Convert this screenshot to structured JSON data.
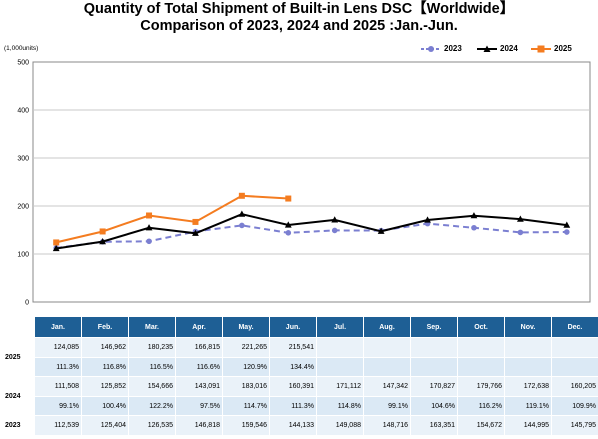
{
  "title_line1": "Quantity of Total Shipment of Built-in Lens DSC【Worldwide】",
  "title_line2": "Comparison of 2023, 2024 and 2025 :Jan.-Jun.",
  "units": "(1,000units)",
  "chart_data": {
    "type": "line",
    "categories": [
      "Jan.",
      "Feb.",
      "Mar.",
      "Apr.",
      "May.",
      "Jun.",
      "Jul.",
      "Aug.",
      "Sep.",
      "Oct.",
      "Nov.",
      "Dec."
    ],
    "ylim": [
      0,
      500
    ],
    "yticks": [
      0,
      100,
      200,
      300,
      400,
      500
    ],
    "ytick_labels": [
      "0",
      "100",
      "200",
      "300",
      "400",
      "500"
    ],
    "grid": true,
    "legend_position": "top-right",
    "series": [
      {
        "name": "2023",
        "color": "#7b7fd1",
        "dashed": true,
        "marker": "circle",
        "values": [
          112.539,
          125.404,
          126.535,
          146.818,
          159.546,
          144.133,
          149.088,
          148.716,
          163.351,
          154.672,
          144.995,
          145.795
        ]
      },
      {
        "name": "2024",
        "color": "#000000",
        "dashed": false,
        "marker": "triangle",
        "values": [
          111.508,
          125.852,
          154.666,
          143.091,
          183.016,
          160.391,
          171.112,
          147.342,
          170.827,
          179.766,
          172.638,
          160.205
        ]
      },
      {
        "name": "2025",
        "color": "#f47c20",
        "dashed": false,
        "marker": "square",
        "values": [
          124.085,
          146.962,
          180.235,
          166.815,
          221.265,
          215.541,
          null,
          null,
          null,
          null,
          null,
          null
        ]
      }
    ]
  },
  "table": {
    "months": [
      "Jan.",
      "Feb.",
      "Mar.",
      "Apr.",
      "May.",
      "Jun.",
      "Jul.",
      "Aug.",
      "Sep.",
      "Oct.",
      "Nov.",
      "Dec."
    ],
    "rows": [
      {
        "year": "2025",
        "values": [
          "124,085",
          "146,962",
          "180,235",
          "166,815",
          "221,265",
          "215,541",
          "",
          "",
          "",
          "",
          "",
          ""
        ],
        "pct": [
          "111.3%",
          "116.8%",
          "116.5%",
          "116.6%",
          "120.9%",
          "134.4%",
          "",
          "",
          "",
          "",
          "",
          ""
        ]
      },
      {
        "year": "2024",
        "values": [
          "111,508",
          "125,852",
          "154,666",
          "143,091",
          "183,016",
          "160,391",
          "171,112",
          "147,342",
          "170,827",
          "179,766",
          "172,638",
          "160,205"
        ],
        "pct": [
          "99.1%",
          "100.4%",
          "122.2%",
          "97.5%",
          "114.7%",
          "111.3%",
          "114.8%",
          "99.1%",
          "104.6%",
          "116.2%",
          "119.1%",
          "109.9%"
        ]
      },
      {
        "year": "2023",
        "values": [
          "112,539",
          "125,404",
          "126,535",
          "146,818",
          "159,546",
          "144,133",
          "149,088",
          "148,716",
          "163,351",
          "154,672",
          "144,995",
          "145,795"
        ],
        "pct": []
      }
    ]
  }
}
